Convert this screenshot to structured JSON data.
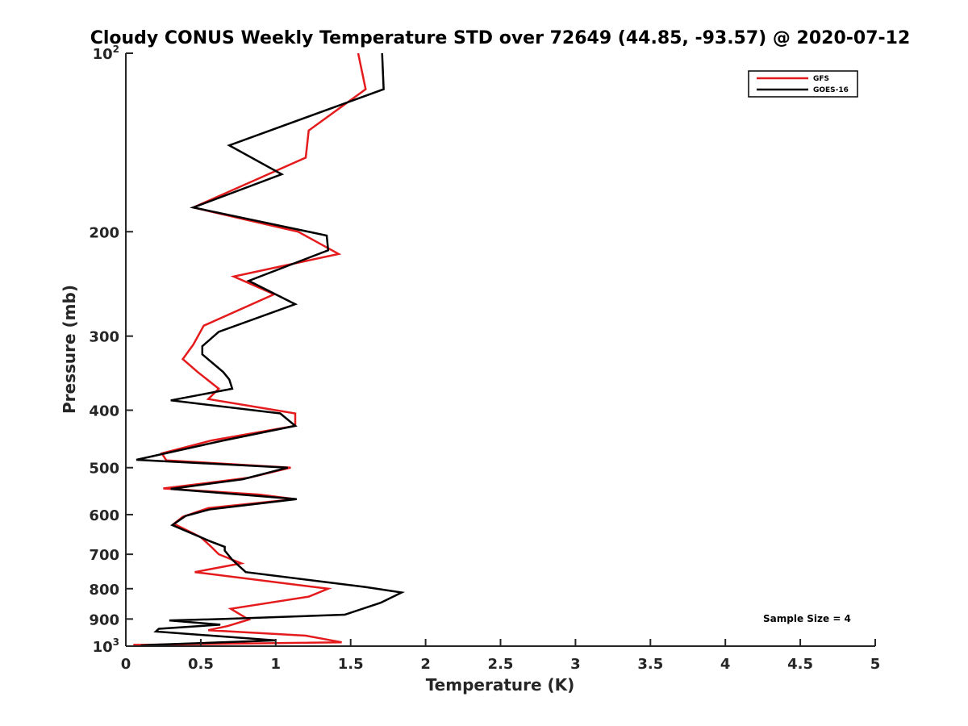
{
  "chart_data": {
    "type": "line",
    "title": "Cloudy CONUS Weekly Temperature STD over 72649 (44.85, -93.57) @ 2020-07-12",
    "xlabel": "Temperature (K)",
    "ylabel": "Pressure (mb)",
    "xlim": [
      0,
      5
    ],
    "ylim": [
      100,
      1000
    ],
    "y_scale": "log",
    "y_reversed": true,
    "grid": false,
    "legend_position": "top-right",
    "x_ticks": [
      0,
      0.5,
      1,
      1.5,
      2,
      2.5,
      3,
      3.5,
      4,
      4.5,
      5
    ],
    "x_tick_labels": [
      "0",
      "0.5",
      "1",
      "1.5",
      "2",
      "2.5",
      "3",
      "3.5",
      "4",
      "4.5",
      "5"
    ],
    "y_ticks": [
      {
        "value": 100,
        "base": "10",
        "exp": "2"
      },
      {
        "value": 200,
        "label": "200"
      },
      {
        "value": 300,
        "label": "300"
      },
      {
        "value": 400,
        "label": "400"
      },
      {
        "value": 500,
        "label": "500"
      },
      {
        "value": 600,
        "label": "600"
      },
      {
        "value": 700,
        "label": "700"
      },
      {
        "value": 800,
        "label": "800"
      },
      {
        "value": 900,
        "label": "900"
      },
      {
        "value": 1000,
        "base": "10",
        "exp": "3"
      }
    ],
    "series": [
      {
        "name": "GFS",
        "color": "#e41a1c",
        "points": [
          [
            1.55,
            100
          ],
          [
            1.6,
            115
          ],
          [
            1.22,
            135
          ],
          [
            1.2,
            150
          ],
          [
            0.45,
            182
          ],
          [
            1.15,
            200
          ],
          [
            1.42,
            218
          ],
          [
            0.72,
            238
          ],
          [
            0.99,
            255
          ],
          [
            0.52,
            288
          ],
          [
            0.45,
            310
          ],
          [
            0.38,
            328
          ],
          [
            0.48,
            345
          ],
          [
            0.62,
            368
          ],
          [
            0.55,
            383
          ],
          [
            1.13,
            405
          ],
          [
            1.13,
            425
          ],
          [
            0.57,
            450
          ],
          [
            0.24,
            473
          ],
          [
            0.27,
            486
          ],
          [
            1.1,
            500
          ],
          [
            0.82,
            520
          ],
          [
            0.25,
            542
          ],
          [
            0.89,
            555
          ],
          [
            1.13,
            565
          ],
          [
            0.55,
            585
          ],
          [
            0.38,
            605
          ],
          [
            0.32,
            622
          ],
          [
            0.5,
            655
          ],
          [
            0.57,
            680
          ],
          [
            0.62,
            700
          ],
          [
            0.77,
            725
          ],
          [
            0.46,
            750
          ],
          [
            1.35,
            800
          ],
          [
            1.22,
            825
          ],
          [
            0.7,
            865
          ],
          [
            0.82,
            902
          ],
          [
            0.68,
            925
          ],
          [
            0.55,
            940
          ],
          [
            1.2,
            960
          ],
          [
            1.44,
            985
          ],
          [
            0.1,
            995
          ],
          [
            0.05,
            995
          ]
        ]
      },
      {
        "name": "GOES-16",
        "color": "#000000",
        "points": [
          [
            1.71,
            100
          ],
          [
            1.72,
            115
          ],
          [
            0.69,
            143
          ],
          [
            1.04,
            160
          ],
          [
            0.45,
            182
          ],
          [
            1.34,
            203
          ],
          [
            1.35,
            215
          ],
          [
            0.82,
            242
          ],
          [
            1.13,
            265
          ],
          [
            0.62,
            295
          ],
          [
            0.51,
            312
          ],
          [
            0.51,
            322
          ],
          [
            0.65,
            345
          ],
          [
            0.69,
            355
          ],
          [
            0.71,
            368
          ],
          [
            0.3,
            385
          ],
          [
            1.03,
            405
          ],
          [
            1.13,
            425
          ],
          [
            0.65,
            450
          ],
          [
            0.07,
            485
          ],
          [
            1.08,
            500
          ],
          [
            0.78,
            523
          ],
          [
            0.3,
            543
          ],
          [
            1.14,
            565
          ],
          [
            0.56,
            588
          ],
          [
            0.4,
            603
          ],
          [
            0.31,
            625
          ],
          [
            0.56,
            665
          ],
          [
            0.66,
            680
          ],
          [
            0.66,
            690
          ],
          [
            0.71,
            715
          ],
          [
            0.8,
            750
          ],
          [
            1.6,
            795
          ],
          [
            1.84,
            812
          ],
          [
            1.7,
            845
          ],
          [
            1.46,
            885
          ],
          [
            0.64,
            900
          ],
          [
            0.29,
            905
          ],
          [
            0.63,
            920
          ],
          [
            0.22,
            935
          ],
          [
            0.2,
            945
          ],
          [
            1.0,
            978
          ],
          [
            0.17,
            995
          ],
          [
            0.1,
            998
          ]
        ]
      }
    ],
    "annotations": [
      {
        "text": "Sample Size = 4"
      }
    ]
  }
}
